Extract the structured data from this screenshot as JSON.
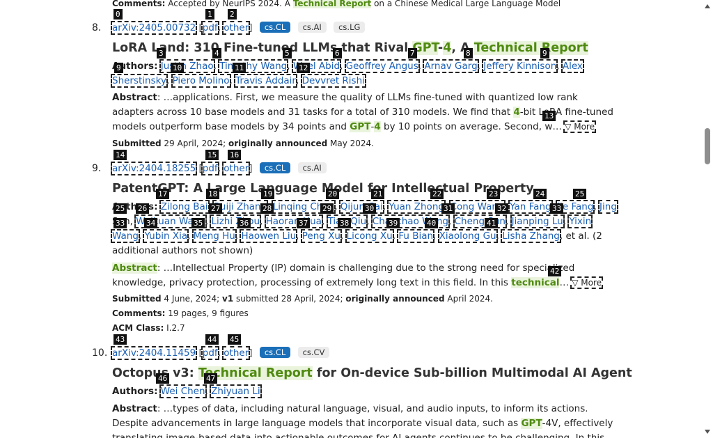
{
  "entry_top": {
    "comments_label": "Comments:",
    "comments_text": "Accepted by NeurIPS 2024. A",
    "comments_hl": "Technical Report",
    "comments_tail": "on a Chinese Medical Large Language Model"
  },
  "results": [
    {
      "number": "8.",
      "arxiv_id": "arXiv:2405.00732",
      "pdf": "pdf",
      "other": "other",
      "primary_tag": "cs.CL",
      "tags": [
        "cs.AI",
        "cs.LG"
      ],
      "title_pre": "LoRA Land: 310 Fine-tuned LLMs that Rival",
      "title_gpt": "GPT",
      "title_dash": "-",
      "title_four": "4",
      "title_mid": ", A",
      "title_hl": "Technical Report",
      "authors_label": "Authors:",
      "authors_line1": [
        "Justin Zhao",
        "Timothy Wang",
        "Wael Abid",
        "Geoffrey Angus",
        "Arnav Garg",
        "Jeffery Kinnison",
        "Alex"
      ],
      "authors_line2": [
        "Sherstinsky",
        "Piero Molino",
        "Travis Addair",
        "Devvret Rishi"
      ],
      "abstract_label": "Abstract",
      "abstract_l1": ": …applications. First, we measure the quality of LLMs fine-tuned with quantized low rank",
      "abstract_l2a": "adapters across 10 base models and 31 tasks for a total of 310 models. We find that",
      "abstract_l2hl": "4",
      "abstract_l2b": "-bit LoRA fine-tuned",
      "abstract_l3a": "models outperform base models by 34 points and",
      "abstract_l3hl": "GPT",
      "abstract_l3dash": "-",
      "abstract_l3four": "4",
      "abstract_l3b": "by 10 points on average. Second, w…",
      "more": "▽ More",
      "submitted_label": "Submitted",
      "submitted_date": "29 April, 2024;",
      "announced_label": "originally announced",
      "announced_date": "May 2024."
    },
    {
      "number": "9.",
      "arxiv_id": "arXiv:2404.18255",
      "pdf": "pdf",
      "other": "other",
      "primary_tag": "cs.CL",
      "tags": [
        "cs.AI"
      ],
      "title": "PatentGPT: A Large Language Model for Intellectual Property",
      "authors_label": "Authors:",
      "authors_line1": [
        "Zilong Bai",
        "Ruiji Zhang",
        "Linqing Chen",
        "Qijun Cai",
        "Yuan Zhong",
        "Cong Wang",
        "Yan Fang",
        "Jie Fang",
        "Jing"
      ],
      "authors_line2_pre": "Sun,",
      "authors_line2": [
        "Weikuan Wang",
        "Lizhi Zhou",
        "Haoran Hua",
        "Tian Qiu",
        "Chaochao Wang",
        "Cheng Sun",
        "Jianping Lu",
        "Yixin"
      ],
      "authors_line3": [
        "Wang",
        "Yubin Xia",
        "Meng Hu",
        "Haowen Liu",
        "Peng Xu",
        "Licong Xu",
        "Fu Bian",
        "Xiaolong Gu",
        "Lisha Zhang"
      ],
      "authors_more": ", et al. (2",
      "authors_more2": "additional authors not shown)",
      "abstract_label": "Abstract",
      "abstract_l1": ": …Intellectual Property (IP) domain is challenging due to the strong need for specialized",
      "abstract_l2a": "knowledge, privacy protection, processing of extremely long text in this field. In this",
      "abstract_l2hl": "technical",
      "abstract_l2b": "…",
      "more": "▽ More",
      "submitted_label": "Submitted",
      "submitted_date": "4 June, 2024;",
      "v1_label": "v1",
      "v1_text": "submitted 28 April, 2024;",
      "announced_label": "originally announced",
      "announced_date": "April 2024.",
      "comments_label": "Comments:",
      "comments_text": "19 pages, 9 figures",
      "acm_label": "ACM Class:",
      "acm_text": "I.2.7"
    },
    {
      "number": "10.",
      "arxiv_id": "arXiv:2404.11459",
      "pdf": "pdf",
      "other": "other",
      "primary_tag": "cs.CL",
      "tags": [
        "cs.CV"
      ],
      "title_pre": "Octopus v3:",
      "title_hl": "Technical Report",
      "title_post": "for On-device Sub-billion Multimodal AI Agent",
      "authors_label": "Authors:",
      "authors_line1": [
        "Wei Chen",
        "Zhiyuan Li"
      ],
      "abstract_label": "Abstract",
      "abstract_l1": ": …types of data, including natural language, visual, and audio inputs, to inform its actions.",
      "abstract_l2a": "Despite advancements in large language models that incorporate visual data, such as",
      "abstract_l2hl": "GPT",
      "abstract_l2b": "-4V, effectively",
      "abstract_l3": "translating image-based data into actionable outcomes for AI agents continues to be challenging. In this"
    }
  ],
  "badges": [
    "0",
    "1",
    "2",
    "3",
    "4",
    "5",
    "6",
    "7",
    "8",
    "9",
    "10",
    "11",
    "12",
    "13",
    "14",
    "15",
    "16",
    "17",
    "18",
    "19",
    "20",
    "21",
    "22",
    "23",
    "24",
    "25",
    "26",
    "27",
    "28",
    "29",
    "30",
    "31",
    "32",
    "33",
    "34",
    "35",
    "36",
    "37",
    "38",
    "39",
    "40",
    "41",
    "42",
    "43",
    "44",
    "45",
    "46",
    "47"
  ]
}
